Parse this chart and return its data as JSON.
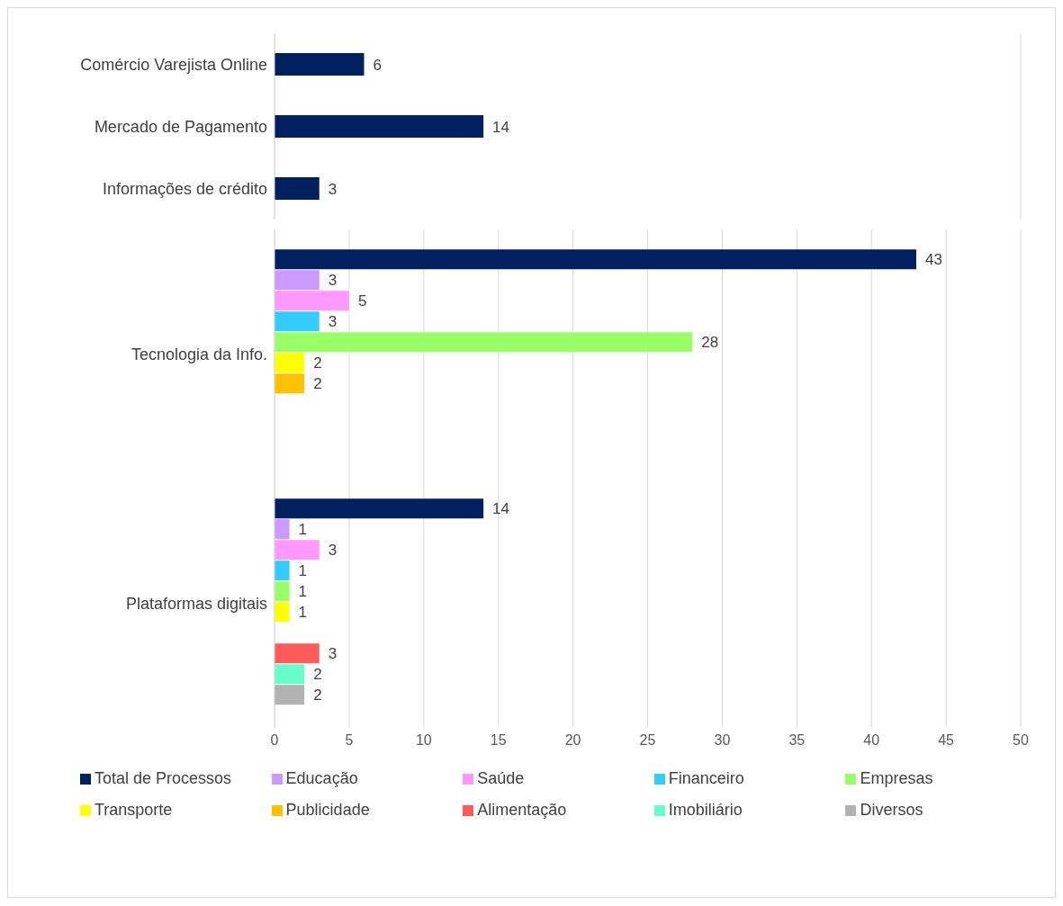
{
  "chart_data": [
    {
      "type": "bar",
      "orientation": "horizontal",
      "categories": [
        "Comércio Varejista Online",
        "Mercado de Pagamento",
        "Informações de crédito"
      ],
      "series": [
        {
          "color": "#002060",
          "values": [
            6,
            14,
            3
          ]
        }
      ],
      "xlim": [
        0,
        50
      ],
      "xticks": [
        0,
        5,
        10,
        15,
        20,
        25,
        30,
        35,
        40,
        45,
        50
      ],
      "grid": "x",
      "tick_labels": "y",
      "data_labels": true,
      "legend": false
    },
    {
      "type": "bar",
      "orientation": "horizontal",
      "categories": [
        "Tecnologia da Info.",
        "Plataformas digitais"
      ],
      "series": [
        {
          "name": "Total de Processos",
          "color": "#002060",
          "values": [
            43,
            14
          ]
        },
        {
          "name": "Educação",
          "color": "#cc99ff",
          "values": [
            3,
            1
          ]
        },
        {
          "name": "Saúde",
          "color": "#ff99ff",
          "values": [
            5,
            3
          ]
        },
        {
          "name": "Financeiro",
          "color": "#33ccff",
          "values": [
            3,
            1
          ]
        },
        {
          "name": "Empresas",
          "color": "#99ff66",
          "values": [
            28,
            1
          ]
        },
        {
          "name": "Transporte",
          "color": "#ffff00",
          "values": [
            2,
            1
          ]
        },
        {
          "name": "Publicidade",
          "color": "#ffc000",
          "values": [
            2,
            null
          ]
        },
        {
          "name": "Alimentação",
          "color": "#ff5b5b",
          "values": [
            null,
            3
          ]
        },
        {
          "name": "Imobiliário",
          "color": "#66ffcc",
          "values": [
            null,
            2
          ]
        },
        {
          "name": "Diversos",
          "color": "#b2b2b2",
          "values": [
            null,
            2
          ]
        }
      ],
      "xlim": [
        0,
        50
      ],
      "xticks": [
        0,
        5,
        10,
        15,
        20,
        25,
        30,
        35,
        40,
        45,
        50
      ],
      "grid": "x",
      "data_labels": true,
      "legend": "bottom"
    }
  ]
}
